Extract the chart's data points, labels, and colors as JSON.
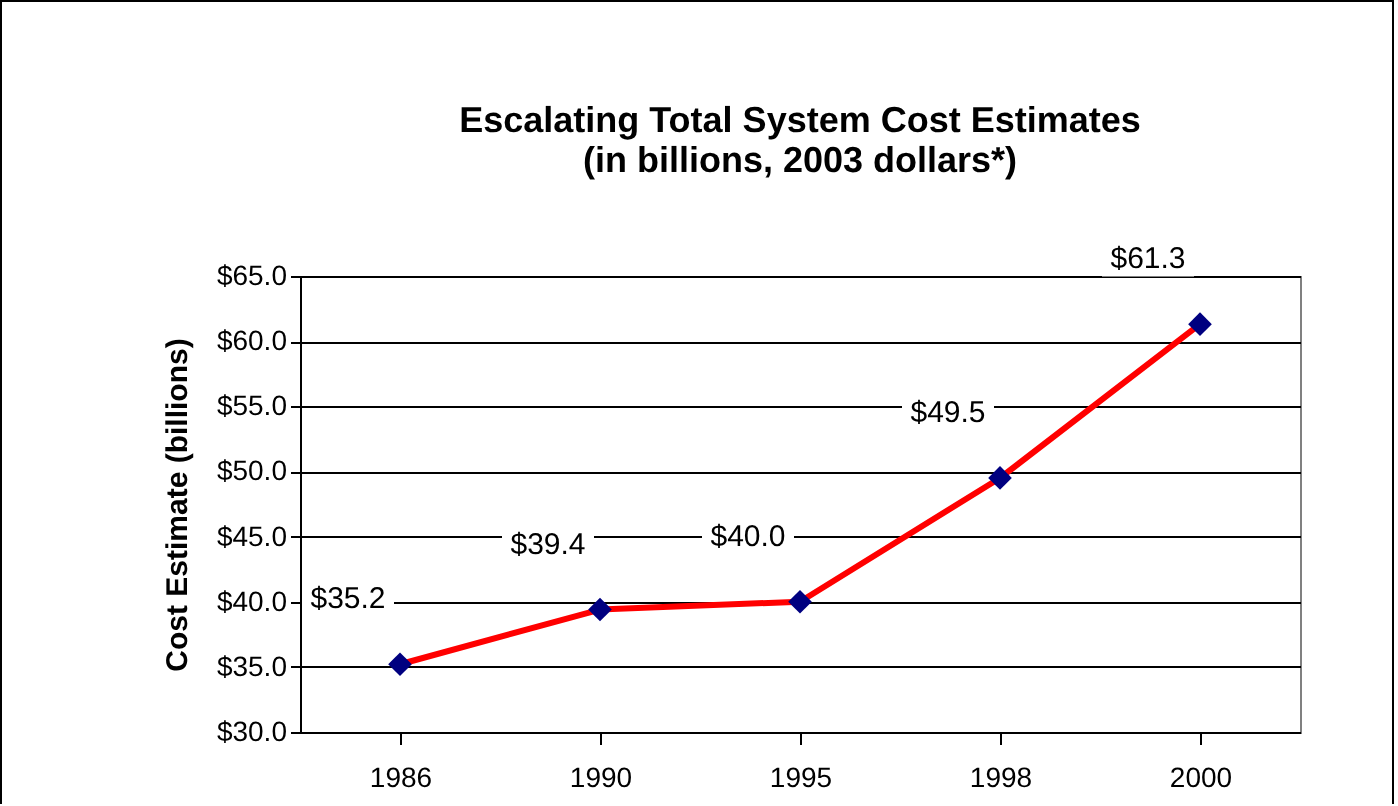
{
  "chart_data": {
    "type": "line",
    "title": [
      "Escalating Total System Cost Estimates",
      "(in billions, 2003 dollars*)"
    ],
    "ylabel": "Cost Estimate (billions)",
    "categories": [
      "1986",
      "1990",
      "1995",
      "1998",
      "2000"
    ],
    "series": [
      {
        "color": "#ff0000",
        "values": [
          35.2,
          39.4,
          40.0,
          49.5,
          61.3
        ],
        "value_labels": [
          "$35.2",
          "$39.4",
          "$40.0",
          "$49.5",
          "$61.3"
        ]
      }
    ],
    "ylim": [
      30,
      65
    ],
    "yticks": [
      {
        "value": 30,
        "label": "$30.0"
      },
      {
        "value": 35,
        "label": "$35.0"
      },
      {
        "value": 40,
        "label": "$40.0"
      },
      {
        "value": 45,
        "label": "$45.0"
      },
      {
        "value": 50,
        "label": "$50.0"
      },
      {
        "value": 55,
        "label": "$55.0"
      },
      {
        "value": 60,
        "label": "$60.0"
      },
      {
        "value": 65,
        "label": "$65.0"
      }
    ],
    "grid": "y",
    "marker": "diamond",
    "line_style": "solid"
  }
}
